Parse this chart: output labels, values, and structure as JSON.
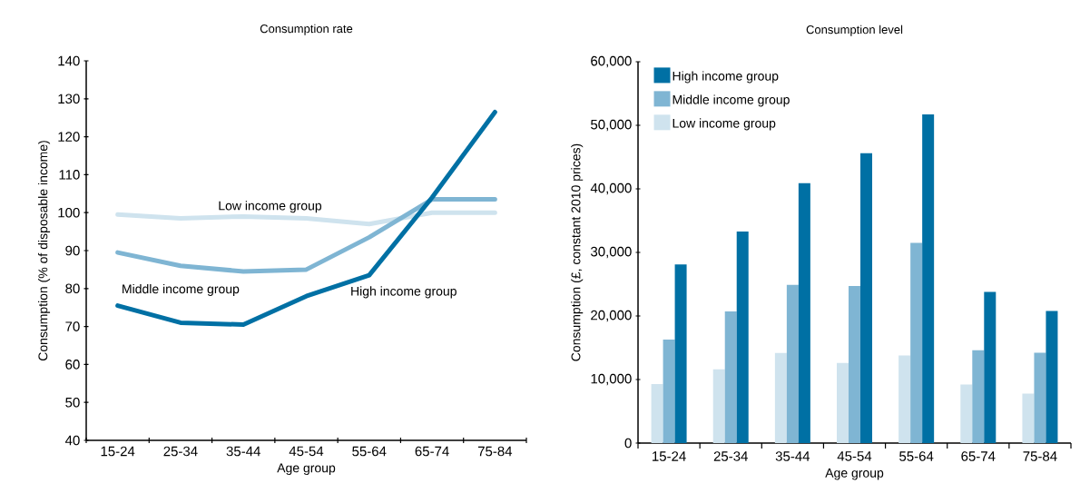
{
  "chart_data": [
    {
      "type": "line",
      "title": "Consumption rate",
      "xlabel": "Age group",
      "ylabel": "Consumption (% of disposable income)",
      "categories": [
        "15-24",
        "25-34",
        "35-44",
        "45-54",
        "55-64",
        "65-74",
        "75-84"
      ],
      "series": [
        {
          "name": "Low income group",
          "color": "#cfe3ee",
          "values": [
            99.5,
            98.5,
            99,
            98.5,
            97,
            100,
            100
          ]
        },
        {
          "name": "Middle income group",
          "color": "#7fb5d3",
          "values": [
            89.5,
            86,
            84.5,
            85,
            93.5,
            103.5,
            103.5
          ]
        },
        {
          "name": "High income group",
          "color": "#0070a4",
          "values": [
            75.5,
            71,
            70.5,
            78,
            83.5,
            104,
            126.5
          ]
        }
      ],
      "ylim": [
        40,
        140
      ],
      "yticks": [
        40,
        50,
        60,
        70,
        80,
        90,
        100,
        110,
        120,
        130,
        140
      ],
      "legend": false,
      "line_style": "solid",
      "marker": "none"
    },
    {
      "type": "bar",
      "title": "Consumption level",
      "xlabel": "Age group",
      "ylabel": "Consumption (£, constant 2010 prices)",
      "categories": [
        "15-24",
        "25-34",
        "35-44",
        "45-54",
        "55-64",
        "65-74",
        "75-84"
      ],
      "series": [
        {
          "name": "Low income group",
          "color": "#cfe3ee",
          "values": [
            9300,
            11600,
            14200,
            12600,
            13800,
            9200,
            7800
          ]
        },
        {
          "name": "Middle income group",
          "color": "#7fb5d3",
          "values": [
            16300,
            20700,
            24900,
            24700,
            31500,
            14600,
            14200
          ]
        },
        {
          "name": "High income group",
          "color": "#0070a4",
          "values": [
            28100,
            33300,
            40900,
            45600,
            51700,
            23800,
            20800
          ]
        }
      ],
      "ylim": [
        0,
        60000
      ],
      "yticks": [
        0,
        {
          "value": 10000,
          "label": "10,000"
        },
        {
          "value": 20000,
          "label": "20,000"
        },
        {
          "value": 30000,
          "label": "30,000"
        },
        {
          "value": 40000,
          "label": "40,000"
        },
        {
          "value": 50000,
          "label": "50,000"
        },
        {
          "value": 60000,
          "label": "60,000"
        }
      ],
      "legend": "top left"
    }
  ]
}
